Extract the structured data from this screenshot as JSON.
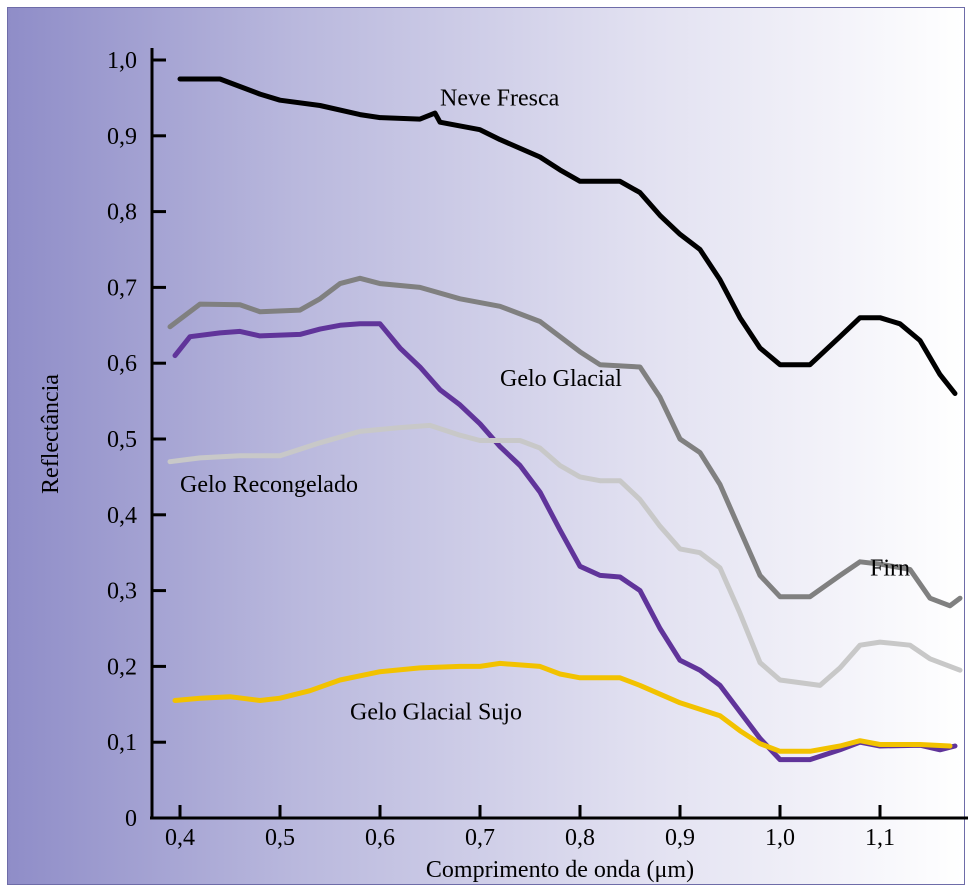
{
  "chart_data": {
    "type": "line",
    "title": "",
    "xlabel": "Comprimento de onda (μm)",
    "ylabel": "Reflectância",
    "xlim": [
      0.38,
      1.18
    ],
    "ylim": [
      0,
      1.0
    ],
    "grid": false,
    "legend": "none (series labelled inline)",
    "x_ticks": [
      {
        "value": 0.4,
        "label": "0,4"
      },
      {
        "value": 0.5,
        "label": "0,5"
      },
      {
        "value": 0.6,
        "label": "0,6"
      },
      {
        "value": 0.7,
        "label": "0,7"
      },
      {
        "value": 0.8,
        "label": "0,8"
      },
      {
        "value": 0.9,
        "label": "0,9"
      },
      {
        "value": 1.0,
        "label": "1,0"
      },
      {
        "value": 1.1,
        "label": "1,1"
      }
    ],
    "y_ticks": [
      {
        "value": 0,
        "label": "0"
      },
      {
        "value": 0.1,
        "label": "0,1"
      },
      {
        "value": 0.2,
        "label": "0,2"
      },
      {
        "value": 0.3,
        "label": "0,3"
      },
      {
        "value": 0.4,
        "label": "0,4"
      },
      {
        "value": 0.5,
        "label": "0,5"
      },
      {
        "value": 0.6,
        "label": "0,6"
      },
      {
        "value": 0.7,
        "label": "0,7"
      },
      {
        "value": 0.8,
        "label": "0,8"
      },
      {
        "value": 0.9,
        "label": "0,9"
      },
      {
        "value": 1.0,
        "label": "1,0"
      }
    ],
    "series": [
      {
        "name": "Neve Fresca",
        "color": "#000000",
        "label_at": [
          0.66,
          0.94
        ],
        "points": [
          [
            0.4,
            0.975
          ],
          [
            0.44,
            0.975
          ],
          [
            0.48,
            0.955
          ],
          [
            0.5,
            0.947
          ],
          [
            0.54,
            0.94
          ],
          [
            0.58,
            0.928
          ],
          [
            0.6,
            0.924
          ],
          [
            0.64,
            0.922
          ],
          [
            0.655,
            0.93
          ],
          [
            0.66,
            0.918
          ],
          [
            0.7,
            0.908
          ],
          [
            0.72,
            0.895
          ],
          [
            0.76,
            0.872
          ],
          [
            0.78,
            0.855
          ],
          [
            0.8,
            0.84
          ],
          [
            0.84,
            0.84
          ],
          [
            0.86,
            0.825
          ],
          [
            0.88,
            0.795
          ],
          [
            0.9,
            0.77
          ],
          [
            0.92,
            0.75
          ],
          [
            0.94,
            0.71
          ],
          [
            0.96,
            0.66
          ],
          [
            0.98,
            0.62
          ],
          [
            1.0,
            0.598
          ],
          [
            1.03,
            0.598
          ],
          [
            1.06,
            0.635
          ],
          [
            1.08,
            0.66
          ],
          [
            1.1,
            0.66
          ],
          [
            1.12,
            0.652
          ],
          [
            1.14,
            0.63
          ],
          [
            1.16,
            0.585
          ],
          [
            1.175,
            0.56
          ]
        ]
      },
      {
        "name": "Firn",
        "color": "#808080",
        "label_at": [
          1.09,
          0.32
        ],
        "points": [
          [
            0.39,
            0.648
          ],
          [
            0.42,
            0.678
          ],
          [
            0.46,
            0.677
          ],
          [
            0.48,
            0.668
          ],
          [
            0.52,
            0.67
          ],
          [
            0.54,
            0.685
          ],
          [
            0.56,
            0.705
          ],
          [
            0.58,
            0.712
          ],
          [
            0.6,
            0.705
          ],
          [
            0.64,
            0.7
          ],
          [
            0.68,
            0.685
          ],
          [
            0.72,
            0.675
          ],
          [
            0.76,
            0.655
          ],
          [
            0.8,
            0.615
          ],
          [
            0.82,
            0.598
          ],
          [
            0.86,
            0.595
          ],
          [
            0.88,
            0.555
          ],
          [
            0.9,
            0.5
          ],
          [
            0.92,
            0.482
          ],
          [
            0.94,
            0.44
          ],
          [
            0.96,
            0.38
          ],
          [
            0.98,
            0.32
          ],
          [
            1.0,
            0.292
          ],
          [
            1.03,
            0.292
          ],
          [
            1.06,
            0.32
          ],
          [
            1.08,
            0.338
          ],
          [
            1.1,
            0.335
          ],
          [
            1.13,
            0.328
          ],
          [
            1.15,
            0.29
          ],
          [
            1.17,
            0.28
          ],
          [
            1.18,
            0.29
          ]
        ]
      },
      {
        "name": "Gelo Glacial",
        "color": "#60349a",
        "label_at": [
          0.72,
          0.57
        ],
        "points": [
          [
            0.395,
            0.61
          ],
          [
            0.41,
            0.635
          ],
          [
            0.44,
            0.64
          ],
          [
            0.46,
            0.642
          ],
          [
            0.48,
            0.636
          ],
          [
            0.52,
            0.638
          ],
          [
            0.54,
            0.645
          ],
          [
            0.56,
            0.65
          ],
          [
            0.58,
            0.652
          ],
          [
            0.6,
            0.652
          ],
          [
            0.62,
            0.62
          ],
          [
            0.64,
            0.595
          ],
          [
            0.66,
            0.565
          ],
          [
            0.68,
            0.545
          ],
          [
            0.7,
            0.52
          ],
          [
            0.72,
            0.49
          ],
          [
            0.74,
            0.465
          ],
          [
            0.76,
            0.43
          ],
          [
            0.78,
            0.38
          ],
          [
            0.8,
            0.332
          ],
          [
            0.82,
            0.32
          ],
          [
            0.84,
            0.318
          ],
          [
            0.86,
            0.3
          ],
          [
            0.88,
            0.25
          ],
          [
            0.9,
            0.208
          ],
          [
            0.92,
            0.195
          ],
          [
            0.94,
            0.175
          ],
          [
            0.96,
            0.14
          ],
          [
            0.98,
            0.105
          ],
          [
            1.0,
            0.077
          ],
          [
            1.03,
            0.077
          ],
          [
            1.06,
            0.09
          ],
          [
            1.08,
            0.1
          ],
          [
            1.1,
            0.095
          ],
          [
            1.14,
            0.096
          ],
          [
            1.16,
            0.09
          ],
          [
            1.175,
            0.095
          ]
        ]
      },
      {
        "name": "Gelo Recongelado",
        "color": "#c8c8c8",
        "label_at": [
          0.4,
          0.43
        ],
        "points": [
          [
            0.39,
            0.47
          ],
          [
            0.42,
            0.475
          ],
          [
            0.46,
            0.478
          ],
          [
            0.5,
            0.478
          ],
          [
            0.54,
            0.495
          ],
          [
            0.58,
            0.51
          ],
          [
            0.62,
            0.515
          ],
          [
            0.65,
            0.518
          ],
          [
            0.68,
            0.505
          ],
          [
            0.7,
            0.498
          ],
          [
            0.74,
            0.498
          ],
          [
            0.76,
            0.488
          ],
          [
            0.78,
            0.465
          ],
          [
            0.8,
            0.45
          ],
          [
            0.82,
            0.445
          ],
          [
            0.84,
            0.445
          ],
          [
            0.86,
            0.42
          ],
          [
            0.88,
            0.385
          ],
          [
            0.9,
            0.355
          ],
          [
            0.92,
            0.35
          ],
          [
            0.94,
            0.33
          ],
          [
            0.96,
            0.27
          ],
          [
            0.98,
            0.205
          ],
          [
            1.0,
            0.182
          ],
          [
            1.04,
            0.175
          ],
          [
            1.06,
            0.198
          ],
          [
            1.08,
            0.228
          ],
          [
            1.1,
            0.232
          ],
          [
            1.13,
            0.228
          ],
          [
            1.15,
            0.21
          ],
          [
            1.18,
            0.195
          ]
        ]
      },
      {
        "name": "Gelo Glacial Sujo",
        "color": "#f2c200",
        "label_at": [
          0.57,
          0.13
        ],
        "points": [
          [
            0.395,
            0.155
          ],
          [
            0.42,
            0.158
          ],
          [
            0.45,
            0.16
          ],
          [
            0.48,
            0.155
          ],
          [
            0.5,
            0.158
          ],
          [
            0.53,
            0.168
          ],
          [
            0.56,
            0.182
          ],
          [
            0.6,
            0.193
          ],
          [
            0.64,
            0.198
          ],
          [
            0.68,
            0.2
          ],
          [
            0.7,
            0.2
          ],
          [
            0.72,
            0.204
          ],
          [
            0.76,
            0.2
          ],
          [
            0.78,
            0.19
          ],
          [
            0.8,
            0.185
          ],
          [
            0.84,
            0.185
          ],
          [
            0.86,
            0.175
          ],
          [
            0.9,
            0.152
          ],
          [
            0.94,
            0.135
          ],
          [
            0.96,
            0.115
          ],
          [
            0.98,
            0.098
          ],
          [
            1.0,
            0.088
          ],
          [
            1.03,
            0.088
          ],
          [
            1.06,
            0.095
          ],
          [
            1.08,
            0.102
          ],
          [
            1.1,
            0.097
          ],
          [
            1.14,
            0.097
          ],
          [
            1.17,
            0.095
          ]
        ]
      }
    ]
  }
}
